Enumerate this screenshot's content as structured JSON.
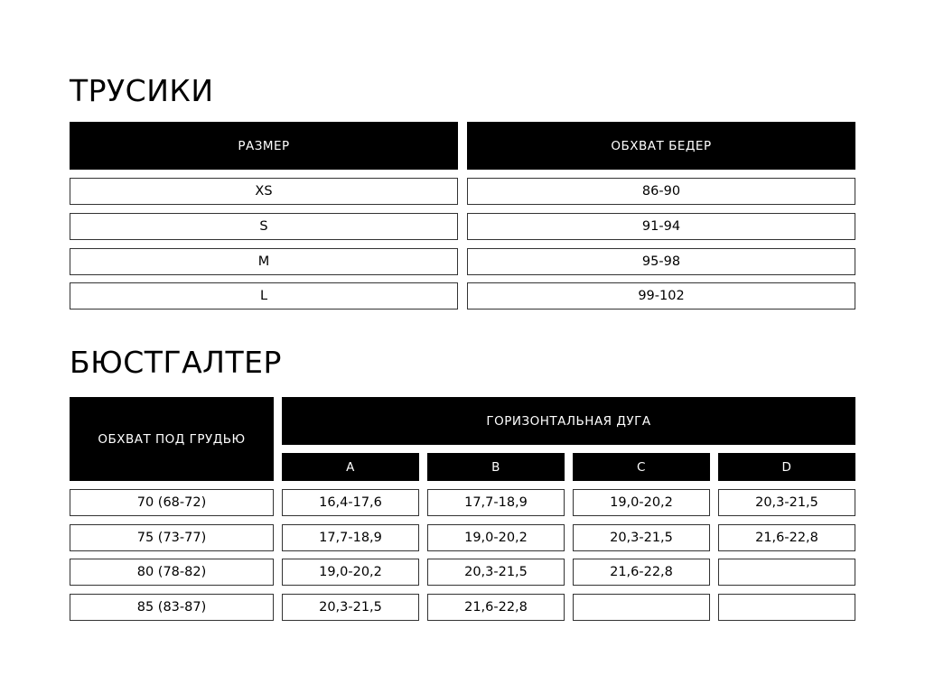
{
  "panties": {
    "title": "ТРУСИКИ",
    "headers": [
      "РАЗМЕР",
      "ОБХВАТ БЕДЕР"
    ],
    "rows": [
      [
        "XS",
        "86-90"
      ],
      [
        "S",
        "91-94"
      ],
      [
        "M",
        "95-98"
      ],
      [
        "L",
        "99-102"
      ]
    ]
  },
  "bra": {
    "title": "БЮСТГАЛТЕР",
    "underbust_header": "ОБХВАТ ПОД ГРУДЬЮ",
    "cup_header": "ГОРИЗОНТАЛЬНАЯ ДУГА",
    "cups": [
      "A",
      "B",
      "C",
      "D"
    ],
    "rows": [
      [
        "70 (68-72)",
        "16,4-17,6",
        "17,7-18,9",
        "19,0-20,2",
        "20,3-21,5"
      ],
      [
        "75 (73-77)",
        "17,7-18,9",
        "19,0-20,2",
        "20,3-21,5",
        "21,6-22,8"
      ],
      [
        "80 (78-82)",
        "19,0-20,2",
        "20,3-21,5",
        "21,6-22,8",
        ""
      ],
      [
        "85 (83-87)",
        "20,3-21,5",
        "21,6-22,8",
        "",
        ""
      ]
    ]
  }
}
